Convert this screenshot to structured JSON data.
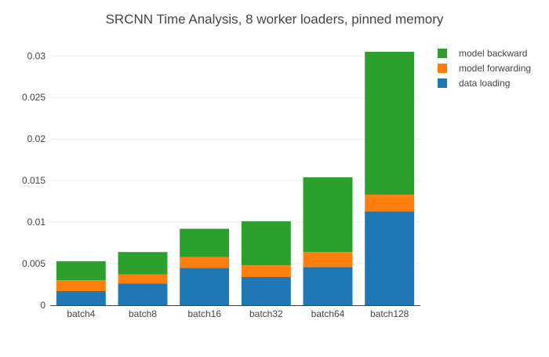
{
  "chart_data": {
    "type": "bar",
    "stacked": true,
    "title": "SRCNN Time Analysis, 8 worker loaders, pinned memory",
    "xlabel": "",
    "ylabel": "",
    "categories": [
      "batch4",
      "batch8",
      "batch16",
      "batch32",
      "batch64",
      "batch128"
    ],
    "ylim": [
      0,
      0.0322
    ],
    "yticks": [
      0,
      0.005,
      0.01,
      0.015,
      0.02,
      0.025,
      0.03
    ],
    "ytick_labels": [
      "0",
      "0.005",
      "0.01",
      "0.015",
      "0.02",
      "0.025",
      "0.03"
    ],
    "grid": true,
    "legend_position": "top-right",
    "series": [
      {
        "name": "data loading",
        "color": "#1f77b4",
        "values": [
          0.0017,
          0.0026,
          0.0045,
          0.0034,
          0.0046,
          0.0113
        ]
      },
      {
        "name": "model forwarding",
        "color": "#ff7f0e",
        "values": [
          0.0013,
          0.0011,
          0.0013,
          0.0014,
          0.0018,
          0.002
        ]
      },
      {
        "name": "model backward",
        "color": "#2ca02c",
        "values": [
          0.0023,
          0.0027,
          0.0034,
          0.0053,
          0.009,
          0.0172
        ]
      }
    ],
    "legend_order": [
      "model backward",
      "model forwarding",
      "data loading"
    ]
  }
}
